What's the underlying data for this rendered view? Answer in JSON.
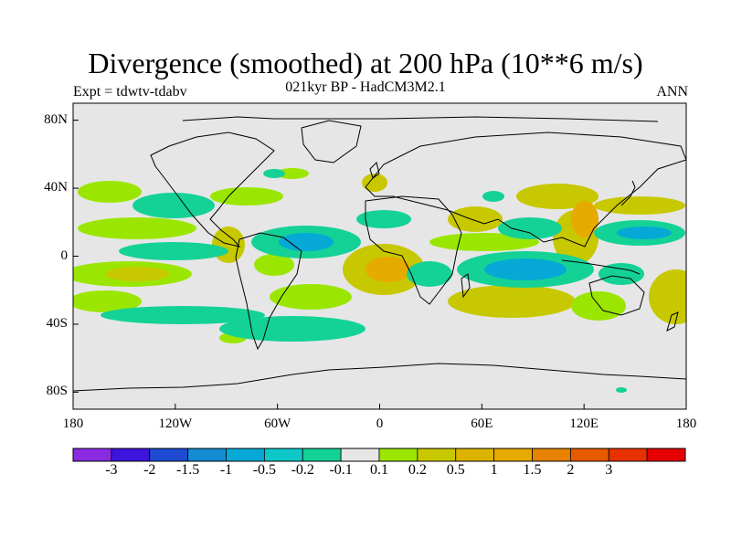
{
  "header": {
    "title": "Divergence (smoothed) at 200 hPa (10**6 m/s)",
    "experiment": "Expt = tdwtv-tdabv",
    "period_model": "021kyr BP - HadCM3M2.1",
    "season": "ANN"
  },
  "map": {
    "background_color": "#e6e6e6",
    "coastline_color": "#000000",
    "lat_ticks": [
      "80N",
      "40N",
      "0",
      "40S",
      "80S"
    ],
    "lat_values": [
      80,
      40,
      0,
      -40,
      -80
    ],
    "lon_ticks": [
      "180",
      "120W",
      "60W",
      "0",
      "60E",
      "120E",
      "180"
    ],
    "lon_values": [
      -180,
      -120,
      -60,
      0,
      60,
      120,
      180
    ]
  },
  "colorbar": {
    "colors": [
      "#8a2be2",
      "#3c14dc",
      "#1e4bd2",
      "#148cd2",
      "#06a9d6",
      "#0ec8c8",
      "#14d296",
      "#e6e6e6",
      "#9be600",
      "#c8c800",
      "#dcb400",
      "#e6aa00",
      "#e68200",
      "#e65a00",
      "#e63200",
      "#e60000"
    ],
    "labels": [
      "-3",
      "-2",
      "-1.5",
      "-1",
      "-0.5",
      "-0.2",
      "-0.1",
      "0.1",
      "0.2",
      "0.5",
      "1",
      "1.5",
      "2",
      "3"
    ]
  }
}
